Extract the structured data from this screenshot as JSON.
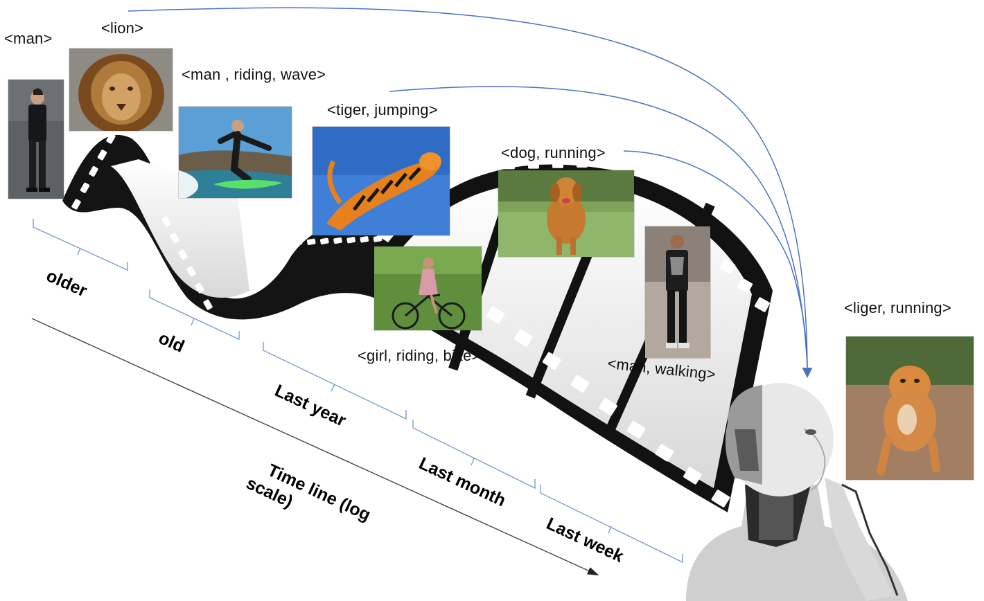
{
  "labels": {
    "man": "<man>",
    "lion": "<lion>",
    "man_riding_wave": "<man , riding, wave>",
    "tiger_jumping": "<tiger, jumping>",
    "dog_running": "<dog, running>",
    "girl_riding_bike": "<girl, riding, bike>",
    "man_walking": "<man, walking>",
    "liger_running": "<liger, running>"
  },
  "periods": {
    "older": "older",
    "old": "old",
    "last_year": "Last year",
    "last_month": "Last month",
    "last_week": "Last week"
  },
  "timeline": {
    "line1": "Time line (log",
    "line2": "scale)"
  },
  "colors": {
    "arrow": "#4a72c4",
    "bracket": "#7a9dd6",
    "film": "#111111",
    "timeline": "#444444"
  }
}
